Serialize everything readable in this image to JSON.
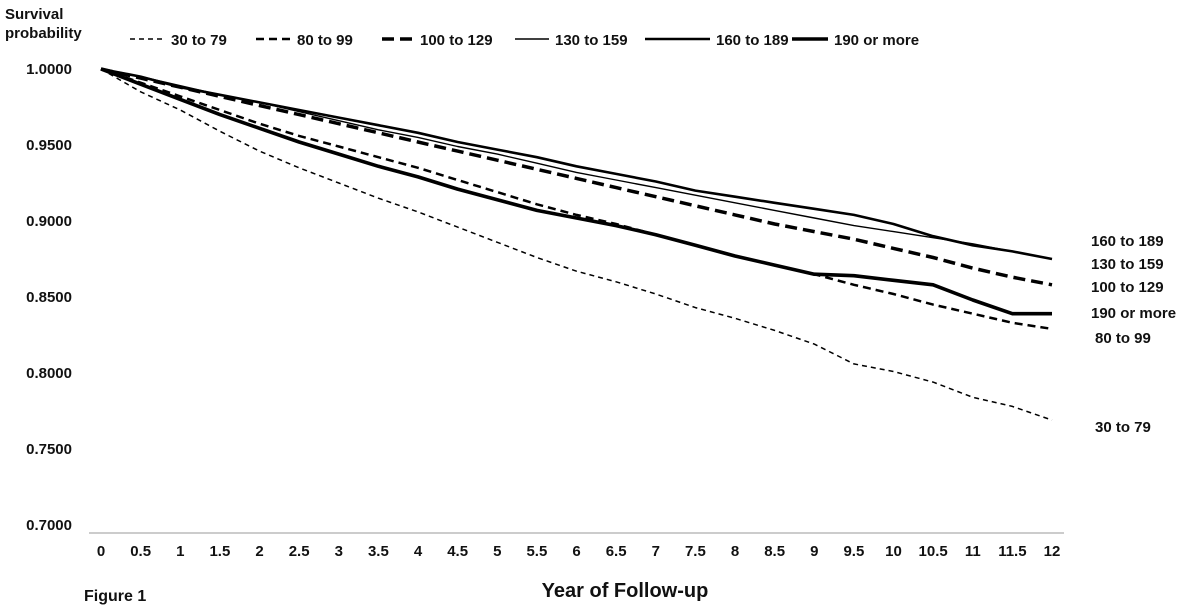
{
  "chart_data": {
    "type": "line",
    "title": "",
    "ylabel_lines": [
      "Survival",
      "probability"
    ],
    "xlabel": "Year of Follow-up",
    "caption": "Figure 1",
    "ylim": [
      0.7,
      1.0
    ],
    "y_ticks": [
      "0.7000",
      "0.7500",
      "0.8000",
      "0.8500",
      "0.9000",
      "0.9500",
      "1.0000"
    ],
    "y_tick_values": [
      0.7,
      0.75,
      0.8,
      0.85,
      0.9,
      0.95,
      1.0
    ],
    "x_ticks": [
      "0",
      "0.5",
      "1",
      "1.5",
      "2",
      "2.5",
      "3",
      "3.5",
      "4",
      "4.5",
      "5",
      "5.5",
      "6",
      "6.5",
      "7",
      "7.5",
      "8",
      "8.5",
      "9",
      "9.5",
      "10",
      "10.5",
      "11",
      "11.5",
      "12"
    ],
    "x": [
      0,
      0.5,
      1,
      1.5,
      2,
      2.5,
      3,
      3.5,
      4,
      4.5,
      5,
      5.5,
      6,
      6.5,
      7,
      7.5,
      8,
      8.5,
      9,
      9.5,
      10,
      10.5,
      11,
      11.5,
      12
    ],
    "grid": false,
    "legend_position": "top",
    "series": [
      {
        "name": "30 to 79",
        "end_label": "30 to 79",
        "style": "thin-dashed",
        "values": [
          1.0,
          0.985,
          0.973,
          0.959,
          0.946,
          0.935,
          0.925,
          0.915,
          0.906,
          0.896,
          0.886,
          0.876,
          0.867,
          0.86,
          0.852,
          0.843,
          0.836,
          0.828,
          0.819,
          0.806,
          0.801,
          0.794,
          0.784,
          0.778,
          0.769
        ]
      },
      {
        "name": "80 to 99",
        "end_label": "80 to 99",
        "style": "medium-dashed",
        "values": [
          1.0,
          0.991,
          0.982,
          0.973,
          0.964,
          0.956,
          0.949,
          0.942,
          0.935,
          0.927,
          0.919,
          0.911,
          0.904,
          0.898,
          0.891,
          0.884,
          0.877,
          0.871,
          0.865,
          0.858,
          0.852,
          0.845,
          0.839,
          0.833,
          0.829
        ]
      },
      {
        "name": "100 to 129",
        "end_label": "100 to 129",
        "style": "thick-dashed",
        "values": [
          1.0,
          0.994,
          0.988,
          0.982,
          0.976,
          0.97,
          0.964,
          0.958,
          0.952,
          0.946,
          0.94,
          0.934,
          0.928,
          0.922,
          0.916,
          0.91,
          0.904,
          0.898,
          0.893,
          0.888,
          0.882,
          0.876,
          0.869,
          0.863,
          0.858
        ]
      },
      {
        "name": "130 to 159",
        "end_label": "130 to 159",
        "style": "thin-solid",
        "values": [
          1.0,
          0.995,
          0.989,
          0.983,
          0.978,
          0.972,
          0.966,
          0.96,
          0.955,
          0.949,
          0.944,
          0.938,
          0.932,
          0.927,
          0.922,
          0.917,
          0.912,
          0.907,
          0.902,
          0.897,
          0.893,
          0.889,
          0.885,
          0.88,
          0.875
        ]
      },
      {
        "name": "160 to 189",
        "end_label": "160 to 189",
        "style": "medium-solid",
        "values": [
          1.0,
          0.995,
          0.988,
          0.983,
          0.978,
          0.973,
          0.968,
          0.963,
          0.958,
          0.952,
          0.947,
          0.942,
          0.936,
          0.931,
          0.926,
          0.92,
          0.916,
          0.912,
          0.908,
          0.904,
          0.898,
          0.89,
          0.884,
          0.88,
          0.875
        ]
      },
      {
        "name": "190 or more",
        "end_label": "190 or more",
        "style": "thick-solid",
        "values": [
          1.0,
          0.99,
          0.98,
          0.97,
          0.961,
          0.952,
          0.944,
          0.936,
          0.929,
          0.921,
          0.914,
          0.907,
          0.902,
          0.897,
          0.891,
          0.884,
          0.877,
          0.871,
          0.865,
          0.864,
          0.861,
          0.858,
          0.848,
          0.839,
          0.839
        ]
      }
    ]
  }
}
